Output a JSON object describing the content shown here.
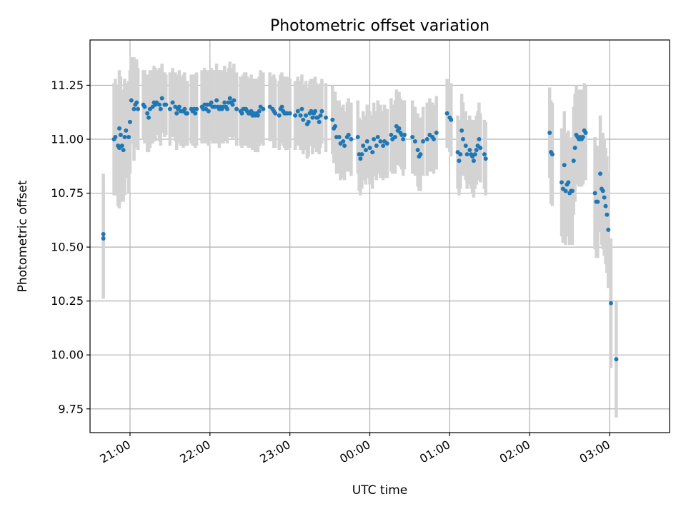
{
  "chart_data": {
    "type": "scatter",
    "title": "Photometric offset variation",
    "xlabel": "UTC time",
    "ylabel": "Photometric offset",
    "x_unit": "UTC time (HH:MM)",
    "xlim": [
      "20:30",
      "03:45"
    ],
    "ylim": [
      9.64,
      11.46
    ],
    "x_ticks": [
      "21:00",
      "22:00",
      "23:00",
      "00:00",
      "01:00",
      "02:00",
      "03:00"
    ],
    "y_ticks": [
      9.75,
      10.0,
      10.25,
      10.5,
      10.75,
      11.0,
      11.25
    ],
    "y_tick_labels": [
      "9.75",
      "10.00",
      "10.25",
      "10.50",
      "10.75",
      "11.00",
      "11.25"
    ],
    "grid": true,
    "x_tick_rotation_deg": 30,
    "colors": {
      "points": "#1f77b4",
      "error_bars": "#d3d3d3",
      "grid": "#b0b0b0"
    },
    "series": [
      {
        "points": [
          [
            "20:40",
            10.56,
            0.28
          ],
          [
            "20:40",
            10.54,
            0.28
          ],
          [
            "20:48",
            11.0,
            0.26
          ],
          [
            "20:49",
            11.01,
            0.27
          ],
          [
            "20:51",
            10.97,
            0.28
          ],
          [
            "20:52",
            10.96,
            0.28
          ],
          [
            "20:52",
            11.05,
            0.27
          ],
          [
            "20:53",
            11.02,
            0.27
          ],
          [
            "20:54",
            10.97,
            0.26
          ],
          [
            "20:55",
            10.95,
            0.24
          ],
          [
            "20:56",
            11.01,
            0.27
          ],
          [
            "20:57",
            11.04,
            0.22
          ],
          [
            "20:59",
            11.01,
            0.26
          ],
          [
            "21:00",
            11.08,
            0.24
          ],
          [
            "21:01",
            11.18,
            0.2
          ],
          [
            "21:03",
            11.14,
            0.24
          ],
          [
            "21:04",
            11.16,
            0.2
          ],
          [
            "21:05",
            11.17,
            0.2
          ],
          [
            "21:06",
            11.14,
            0.19
          ],
          [
            "21:10",
            11.16,
            0.16
          ],
          [
            "21:11",
            11.15,
            0.17
          ],
          [
            "21:13",
            11.12,
            0.18
          ],
          [
            "21:14",
            11.1,
            0.16
          ],
          [
            "21:15",
            11.14,
            0.18
          ],
          [
            "21:17",
            11.15,
            0.17
          ],
          [
            "21:18",
            11.17,
            0.17
          ],
          [
            "21:19",
            11.16,
            0.17
          ],
          [
            "21:20",
            11.17,
            0.15
          ],
          [
            "21:22",
            11.16,
            0.17
          ],
          [
            "21:23",
            11.14,
            0.17
          ],
          [
            "21:24",
            11.19,
            0.16
          ],
          [
            "21:26",
            11.16,
            0.15
          ],
          [
            "21:27",
            11.16,
            0.14
          ],
          [
            "21:30",
            11.14,
            0.17
          ],
          [
            "21:32",
            11.17,
            0.16
          ],
          [
            "21:34",
            11.15,
            0.16
          ],
          [
            "21:35",
            11.12,
            0.17
          ],
          [
            "21:36",
            11.14,
            0.16
          ],
          [
            "21:37",
            11.15,
            0.17
          ],
          [
            "21:38",
            11.13,
            0.16
          ],
          [
            "21:40",
            11.13,
            0.17
          ],
          [
            "21:41",
            11.14,
            0.17
          ],
          [
            "21:42",
            11.12,
            0.15
          ],
          [
            "21:43",
            11.12,
            0.15
          ],
          [
            "21:46",
            11.14,
            0.16
          ],
          [
            "21:47",
            11.13,
            0.16
          ],
          [
            "21:48",
            11.14,
            0.16
          ],
          [
            "21:49",
            11.12,
            0.16
          ],
          [
            "21:50",
            11.14,
            0.17
          ],
          [
            "21:54",
            11.15,
            0.17
          ],
          [
            "21:55",
            11.14,
            0.16
          ],
          [
            "21:56",
            11.16,
            0.17
          ],
          [
            "21:57",
            11.14,
            0.16
          ],
          [
            "21:58",
            11.16,
            0.16
          ],
          [
            "21:59",
            11.13,
            0.16
          ],
          [
            "22:00",
            11.16,
            0.16
          ],
          [
            "22:01",
            11.17,
            0.16
          ],
          [
            "22:02",
            11.15,
            0.17
          ],
          [
            "22:03",
            11.15,
            0.16
          ],
          [
            "22:04",
            11.15,
            0.17
          ],
          [
            "22:05",
            11.18,
            0.17
          ],
          [
            "22:06",
            11.15,
            0.17
          ],
          [
            "22:07",
            11.14,
            0.18
          ],
          [
            "22:08",
            11.15,
            0.17
          ],
          [
            "22:09",
            11.14,
            0.16
          ],
          [
            "22:10",
            11.15,
            0.17
          ],
          [
            "22:11",
            11.17,
            0.17
          ],
          [
            "22:12",
            11.15,
            0.16
          ],
          [
            "22:13",
            11.14,
            0.16
          ],
          [
            "22:14",
            11.17,
            0.16
          ],
          [
            "22:15",
            11.19,
            0.17
          ],
          [
            "22:16",
            11.17,
            0.16
          ],
          [
            "22:17",
            11.16,
            0.16
          ],
          [
            "22:18",
            11.18,
            0.17
          ],
          [
            "22:20",
            11.14,
            0.17
          ],
          [
            "22:23",
            11.13,
            0.16
          ],
          [
            "22:24",
            11.12,
            0.16
          ],
          [
            "22:25",
            11.14,
            0.16
          ],
          [
            "22:26",
            11.14,
            0.17
          ],
          [
            "22:27",
            11.14,
            0.17
          ],
          [
            "22:28",
            11.13,
            0.16
          ],
          [
            "22:29",
            11.12,
            0.16
          ],
          [
            "22:30",
            11.12,
            0.16
          ],
          [
            "22:31",
            11.13,
            0.17
          ],
          [
            "22:32",
            11.11,
            0.16
          ],
          [
            "22:33",
            11.12,
            0.16
          ],
          [
            "22:34",
            11.11,
            0.17
          ],
          [
            "22:35",
            11.12,
            0.16
          ],
          [
            "22:36",
            11.11,
            0.17
          ],
          [
            "22:37",
            11.13,
            0.16
          ],
          [
            "22:38",
            11.15,
            0.17
          ],
          [
            "22:40",
            11.14,
            0.17
          ],
          [
            "22:45",
            11.15,
            0.16
          ],
          [
            "22:47",
            11.14,
            0.15
          ],
          [
            "22:48",
            11.13,
            0.17
          ],
          [
            "22:49",
            11.12,
            0.16
          ],
          [
            "22:52",
            11.11,
            0.16
          ],
          [
            "22:53",
            11.14,
            0.16
          ],
          [
            "22:54",
            11.15,
            0.16
          ],
          [
            "22:55",
            11.13,
            0.16
          ],
          [
            "22:56",
            11.12,
            0.16
          ],
          [
            "22:57",
            11.12,
            0.17
          ],
          [
            "22:58",
            11.12,
            0.17
          ],
          [
            "23:00",
            11.12,
            0.16
          ],
          [
            "23:04",
            11.11,
            0.16
          ],
          [
            "23:06",
            11.13,
            0.16
          ],
          [
            "23:08",
            11.11,
            0.16
          ],
          [
            "23:09",
            11.14,
            0.16
          ],
          [
            "23:10",
            11.09,
            0.16
          ],
          [
            "23:12",
            11.11,
            0.16
          ],
          [
            "23:13",
            11.07,
            0.16
          ],
          [
            "23:14",
            11.08,
            0.16
          ],
          [
            "23:15",
            11.12,
            0.15
          ],
          [
            "23:16",
            11.13,
            0.15
          ],
          [
            "23:17",
            11.1,
            0.17
          ],
          [
            "23:18",
            11.12,
            0.16
          ],
          [
            "23:19",
            11.13,
            0.16
          ],
          [
            "23:20",
            11.1,
            0.16
          ],
          [
            "23:21",
            11.1,
            0.15
          ],
          [
            "23:22",
            11.08,
            0.15
          ],
          [
            "23:23",
            11.11,
            0.15
          ],
          [
            "23:24",
            11.13,
            0.15
          ],
          [
            "23:27",
            11.1,
            0.16
          ],
          [
            "23:32",
            11.09,
            0.16
          ],
          [
            "23:33",
            11.05,
            0.16
          ],
          [
            "23:34",
            11.06,
            0.16
          ],
          [
            "23:35",
            11.01,
            0.17
          ],
          [
            "23:37",
            11.01,
            0.17
          ],
          [
            "23:38",
            10.98,
            0.17
          ],
          [
            "23:40",
            10.99,
            0.17
          ],
          [
            "23:41",
            10.97,
            0.16
          ],
          [
            "23:43",
            11.01,
            0.16
          ],
          [
            "23:44",
            11.02,
            0.17
          ],
          [
            "23:46",
            11.0,
            0.17
          ],
          [
            "23:51",
            11.01,
            0.17
          ],
          [
            "23:52",
            10.93,
            0.17
          ],
          [
            "23:53",
            10.91,
            0.17
          ],
          [
            "23:54",
            10.93,
            0.16
          ],
          [
            "23:55",
            10.97,
            0.16
          ],
          [
            "23:57",
            10.95,
            0.16
          ],
          [
            "23:58",
            10.99,
            0.17
          ],
          [
            "00:00",
            10.96,
            0.17
          ],
          [
            "00:02",
            10.94,
            0.17
          ],
          [
            "00:03",
            11.0,
            0.17
          ],
          [
            "00:05",
            10.97,
            0.16
          ],
          [
            "00:06",
            11.01,
            0.17
          ],
          [
            "00:08",
            10.99,
            0.17
          ],
          [
            "00:10",
            10.97,
            0.16
          ],
          [
            "00:11",
            10.99,
            0.17
          ],
          [
            "00:13",
            10.98,
            0.16
          ],
          [
            "00:16",
            11.02,
            0.17
          ],
          [
            "00:17",
            11.0,
            0.16
          ],
          [
            "00:19",
            11.01,
            0.17
          ],
          [
            "00:20",
            11.06,
            0.17
          ],
          [
            "00:21",
            11.04,
            0.16
          ],
          [
            "00:22",
            11.05,
            0.17
          ],
          [
            "00:23",
            11.03,
            0.16
          ],
          [
            "00:24",
            11.02,
            0.16
          ],
          [
            "00:25",
            11.0,
            0.17
          ],
          [
            "00:26",
            11.02,
            0.16
          ],
          [
            "00:32",
            11.01,
            0.17
          ],
          [
            "00:34",
            10.99,
            0.16
          ],
          [
            "00:36",
            10.95,
            0.17
          ],
          [
            "00:37",
            10.92,
            0.16
          ],
          [
            "00:38",
            10.93,
            0.17
          ],
          [
            "00:40",
            10.99,
            0.16
          ],
          [
            "00:43",
            11.0,
            0.17
          ],
          [
            "00:45",
            11.02,
            0.17
          ],
          [
            "00:47",
            11.01,
            0.16
          ],
          [
            "00:48",
            11.0,
            0.16
          ],
          [
            "00:50",
            11.03,
            0.17
          ],
          [
            "00:58",
            11.12,
            0.16
          ],
          [
            "01:00",
            11.1,
            0.16
          ],
          [
            "01:01",
            11.09,
            0.17
          ],
          [
            "01:06",
            10.94,
            0.17
          ],
          [
            "01:07",
            10.9,
            0.16
          ],
          [
            "01:08",
            10.93,
            0.16
          ],
          [
            "01:09",
            11.04,
            0.17
          ],
          [
            "01:10",
            11.0,
            0.17
          ],
          [
            "01:12",
            10.97,
            0.16
          ],
          [
            "01:13",
            10.93,
            0.16
          ],
          [
            "01:15",
            10.95,
            0.16
          ],
          [
            "01:16",
            10.93,
            0.16
          ],
          [
            "01:17",
            10.92,
            0.17
          ],
          [
            "01:18",
            10.9,
            0.17
          ],
          [
            "01:19",
            10.93,
            0.16
          ],
          [
            "01:20",
            10.95,
            0.16
          ],
          [
            "01:21",
            10.97,
            0.16
          ],
          [
            "01:22",
            11.0,
            0.17
          ],
          [
            "01:23",
            10.96,
            0.16
          ],
          [
            "01:26",
            10.93,
            0.16
          ],
          [
            "01:27",
            10.91,
            0.17
          ],
          [
            "02:15",
            11.03,
            0.21
          ],
          [
            "02:16",
            10.94,
            0.24
          ],
          [
            "02:17",
            10.93,
            0.24
          ],
          [
            "02:24",
            10.8,
            0.25
          ],
          [
            "02:25",
            10.77,
            0.25
          ],
          [
            "02:26",
            10.88,
            0.25
          ],
          [
            "02:27",
            10.76,
            0.25
          ],
          [
            "02:28",
            10.79,
            0.24
          ],
          [
            "02:29",
            10.8,
            0.24
          ],
          [
            "02:30",
            10.75,
            0.24
          ],
          [
            "02:31",
            10.76,
            0.24
          ],
          [
            "02:32",
            10.76,
            0.25
          ],
          [
            "02:33",
            10.9,
            0.25
          ],
          [
            "02:34",
            10.96,
            0.25
          ],
          [
            "02:35",
            11.02,
            0.23
          ],
          [
            "02:36",
            11.01,
            0.22
          ],
          [
            "02:37",
            11.0,
            0.22
          ],
          [
            "02:38",
            11.01,
            0.22
          ],
          [
            "02:39",
            11.0,
            0.22
          ],
          [
            "02:40",
            11.01,
            0.22
          ],
          [
            "02:41",
            11.04,
            0.22
          ],
          [
            "02:42",
            11.03,
            0.22
          ],
          [
            "02:49",
            10.75,
            0.26
          ],
          [
            "02:50",
            10.71,
            0.26
          ],
          [
            "02:51",
            10.71,
            0.26
          ],
          [
            "02:53",
            10.84,
            0.27
          ],
          [
            "02:54",
            10.77,
            0.26
          ],
          [
            "02:55",
            10.76,
            0.27
          ],
          [
            "02:56",
            10.73,
            0.27
          ],
          [
            "02:57",
            10.69,
            0.27
          ],
          [
            "02:58",
            10.65,
            0.27
          ],
          [
            "02:59",
            10.58,
            0.27
          ],
          [
            "03:01",
            10.24,
            0.3
          ],
          [
            "03:05",
            9.98,
            0.27
          ]
        ]
      }
    ]
  }
}
